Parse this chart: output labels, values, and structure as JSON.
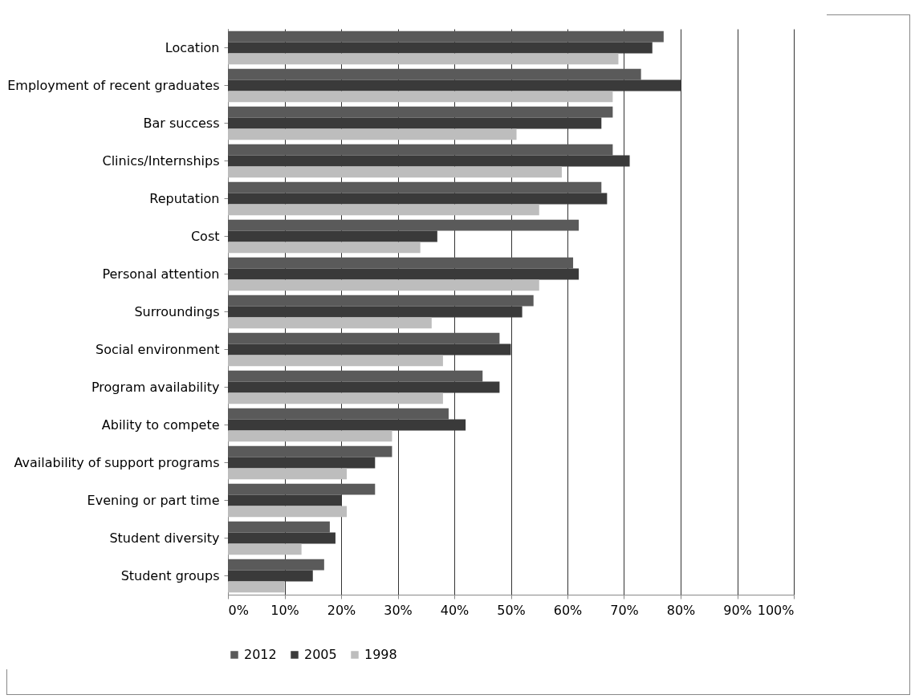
{
  "chart_data": {
    "type": "bar",
    "orientation": "horizontal",
    "categories": [
      "Location",
      "Employment of recent graduates",
      "Bar success",
      "Clinics/Internships",
      "Reputation",
      "Cost",
      "Personal attention",
      "Surroundings",
      "Social environment",
      "Program availability",
      "Ability to compete",
      "Availability of support programs",
      "Evening or part time",
      "Student diversity",
      "Student groups"
    ],
    "series": [
      {
        "name": "2012",
        "color": "#5a5a5a",
        "values": [
          77,
          73,
          68,
          68,
          66,
          62,
          61,
          54,
          48,
          45,
          39,
          29,
          26,
          18,
          17
        ]
      },
      {
        "name": "2005",
        "color": "#3a3a3a",
        "values": [
          75,
          80,
          66,
          71,
          67,
          37,
          62,
          52,
          50,
          48,
          42,
          26,
          20,
          19,
          15
        ]
      },
      {
        "name": "1998",
        "color": "#bdbdbd",
        "values": [
          69,
          68,
          51,
          59,
          55,
          34,
          55,
          36,
          38,
          38,
          29,
          21,
          21,
          13,
          10
        ]
      }
    ],
    "xlim": [
      0,
      100
    ],
    "xticks": [
      {
        "value": 0,
        "label": "0%"
      },
      {
        "value": 10,
        "label": "10%"
      },
      {
        "value": 20,
        "label": "20%"
      },
      {
        "value": 30,
        "label": "30%"
      },
      {
        "value": 40,
        "label": "40%"
      },
      {
        "value": 50,
        "label": "50%"
      },
      {
        "value": 60,
        "label": "60%"
      },
      {
        "value": 70,
        "label": "70%"
      },
      {
        "value": 80,
        "label": "80%"
      },
      {
        "value": 90,
        "label": "90%"
      },
      {
        "value": 100,
        "label": "100%"
      }
    ],
    "grid": "x",
    "legend": "bottom"
  }
}
